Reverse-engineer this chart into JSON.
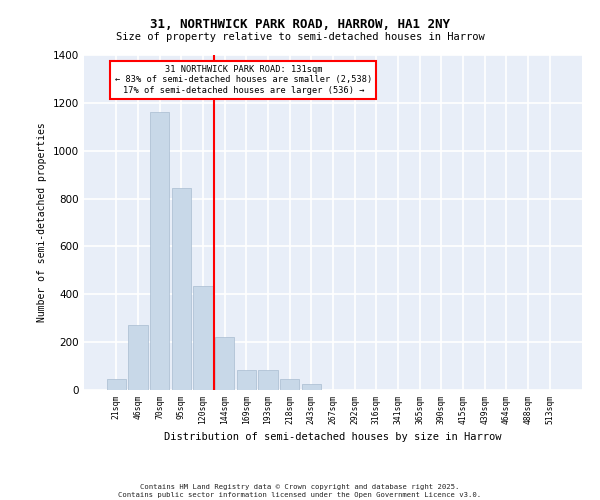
{
  "title1": "31, NORTHWICK PARK ROAD, HARROW, HA1 2NY",
  "title2": "Size of property relative to semi-detached houses in Harrow",
  "xlabel": "Distribution of semi-detached houses by size in Harrow",
  "ylabel": "Number of semi-detached properties",
  "categories": [
    "21sqm",
    "46sqm",
    "70sqm",
    "95sqm",
    "120sqm",
    "144sqm",
    "169sqm",
    "193sqm",
    "218sqm",
    "243sqm",
    "267sqm",
    "292sqm",
    "316sqm",
    "341sqm",
    "365sqm",
    "390sqm",
    "415sqm",
    "439sqm",
    "464sqm",
    "488sqm",
    "513sqm"
  ],
  "values": [
    45,
    270,
    1160,
    845,
    435,
    220,
    85,
    85,
    45,
    25,
    0,
    0,
    0,
    0,
    0,
    0,
    0,
    0,
    0,
    0,
    0
  ],
  "bar_color": "#c8d8e8",
  "bar_edge_color": "#a8bcd0",
  "annotation_text_line1": "31 NORTHWICK PARK ROAD: 131sqm",
  "annotation_text_line2": "← 83% of semi-detached houses are smaller (2,538)",
  "annotation_text_line3": "17% of semi-detached houses are larger (536) →",
  "annotation_box_color": "white",
  "annotation_box_edge_color": "red",
  "vline_color": "red",
  "vline_x_index": 4.5,
  "ylim": [
    0,
    1400
  ],
  "background_color": "#e8eef8",
  "grid_color": "white",
  "footer_line1": "Contains HM Land Registry data © Crown copyright and database right 2025.",
  "footer_line2": "Contains public sector information licensed under the Open Government Licence v3.0."
}
